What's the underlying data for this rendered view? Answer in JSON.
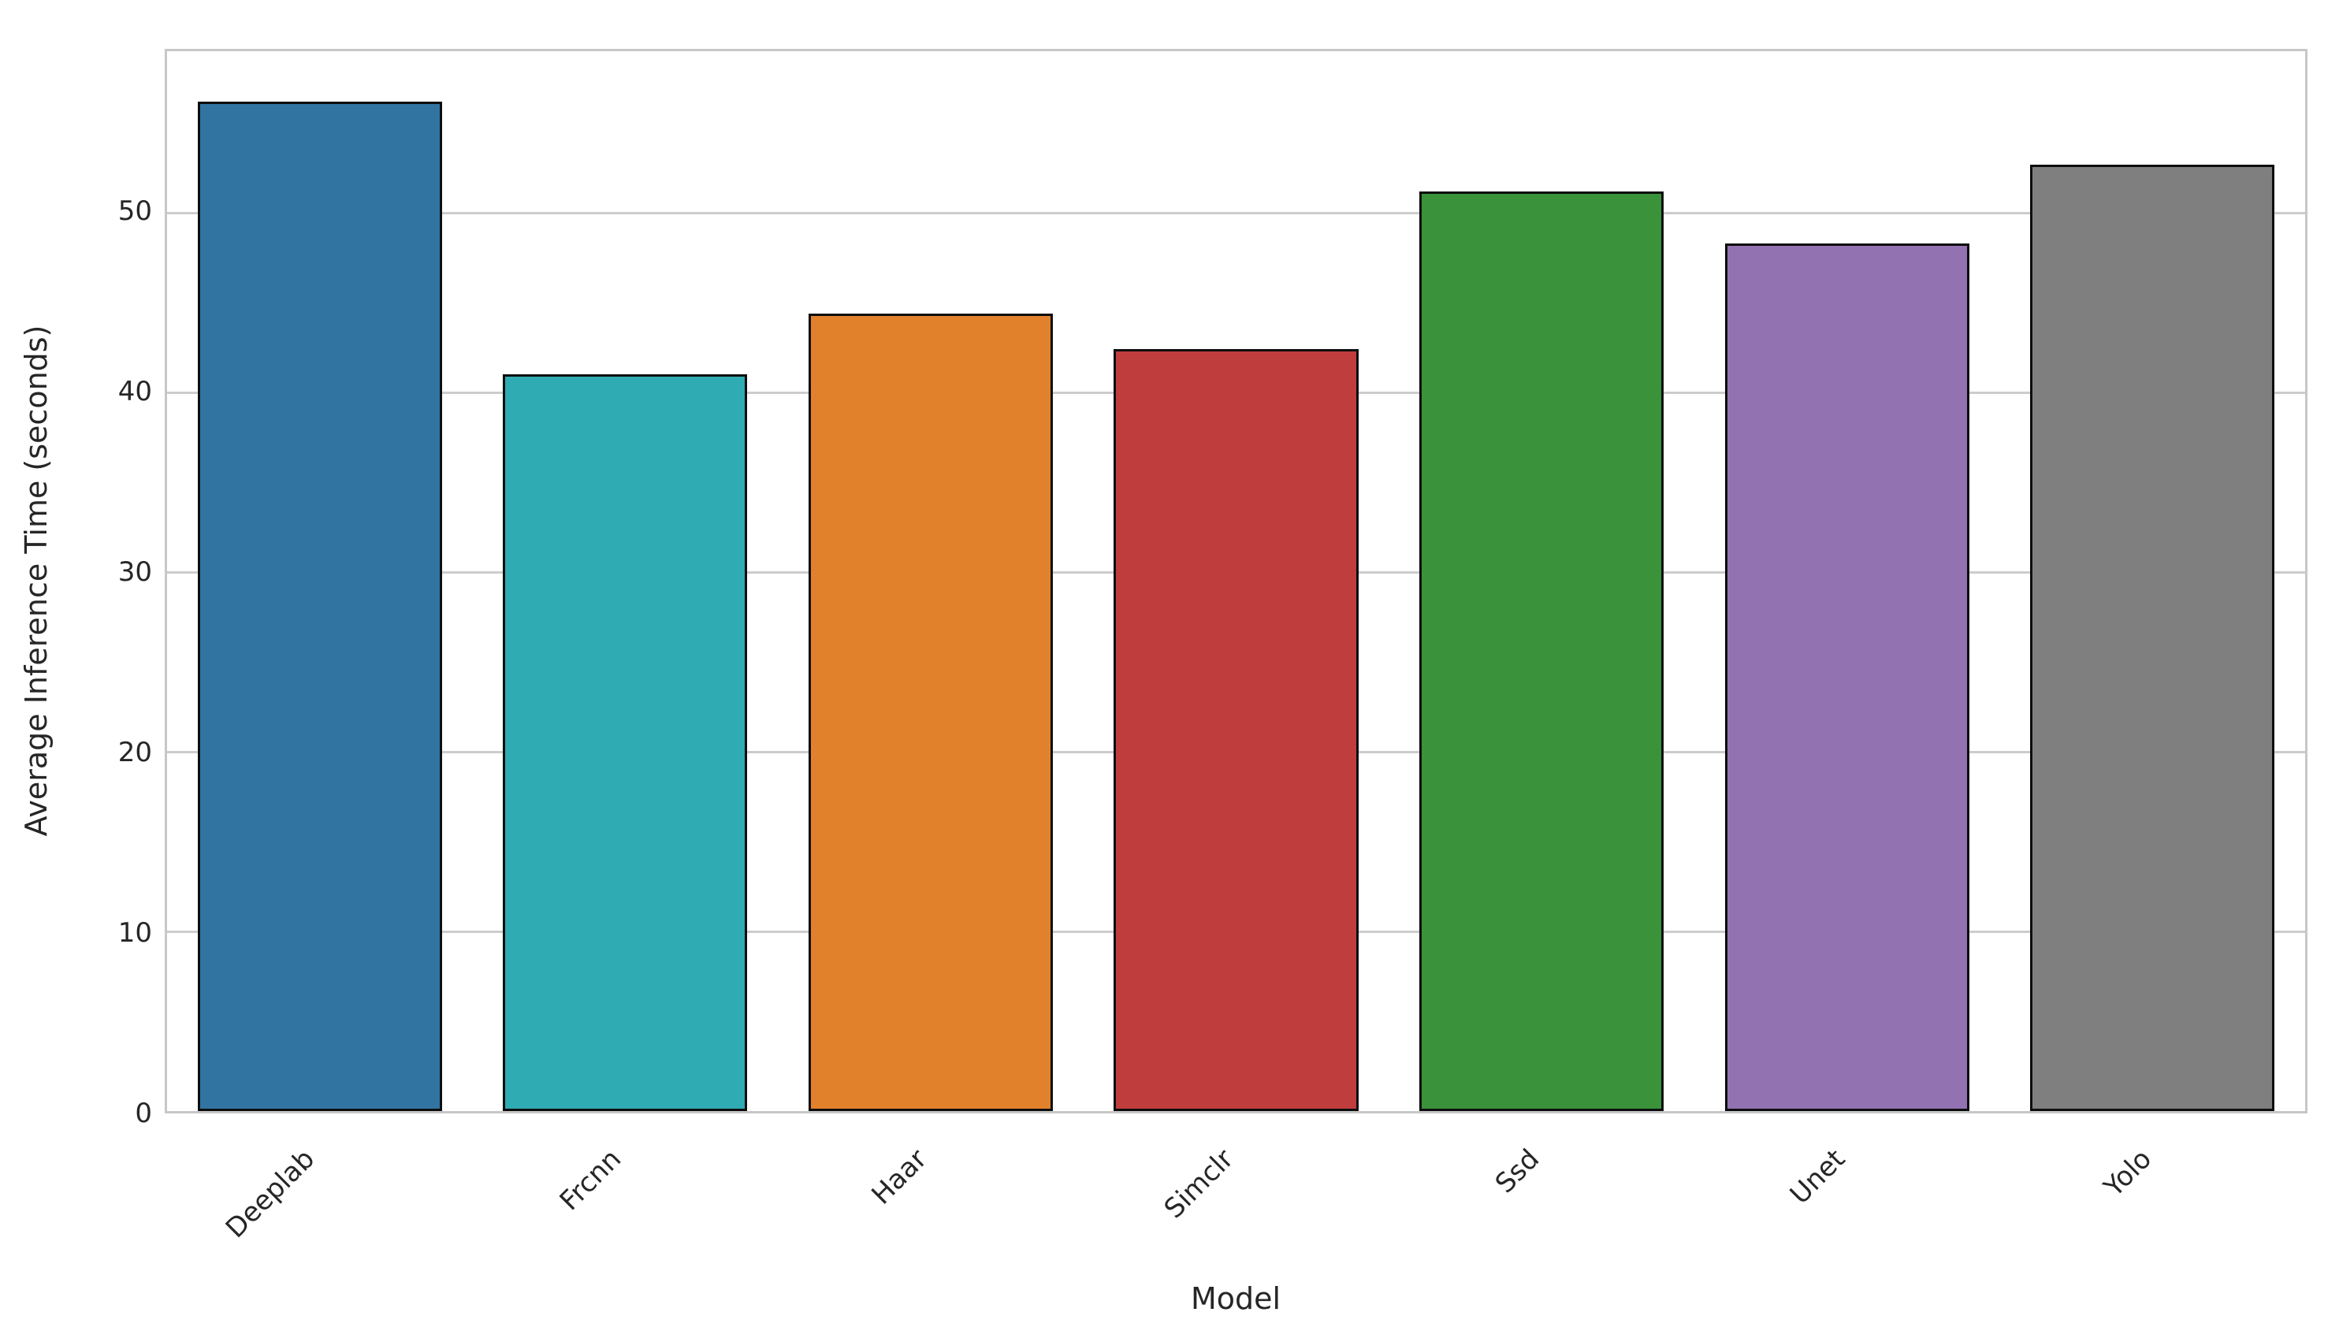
{
  "chart_data": {
    "type": "bar",
    "title": "",
    "xlabel": "Model",
    "ylabel": "Average Inference Time (seconds)",
    "categories": [
      "Deeplab",
      "Frcnn",
      "Haar",
      "Simclr",
      "Ssd",
      "Unet",
      "Yolo"
    ],
    "values": [
      56.2,
      41.0,
      44.4,
      42.4,
      51.2,
      48.3,
      52.7
    ],
    "bar_colors": [
      "#3274a1",
      "#2fabb3",
      "#e1812c",
      "#c03d3e",
      "#3a923a",
      "#9372b2",
      "#7f7f7f"
    ],
    "ylim": [
      0,
      59
    ],
    "yticks": [
      0,
      10,
      20,
      30,
      40,
      50
    ],
    "grid": "horizontal",
    "legend": "none",
    "bar_edge_color": "#0d0d0d",
    "grid_color": "#cccccc",
    "axes_border_color": "#c7c7c7",
    "text_color": "#262626",
    "background_color": "#ffffff"
  }
}
